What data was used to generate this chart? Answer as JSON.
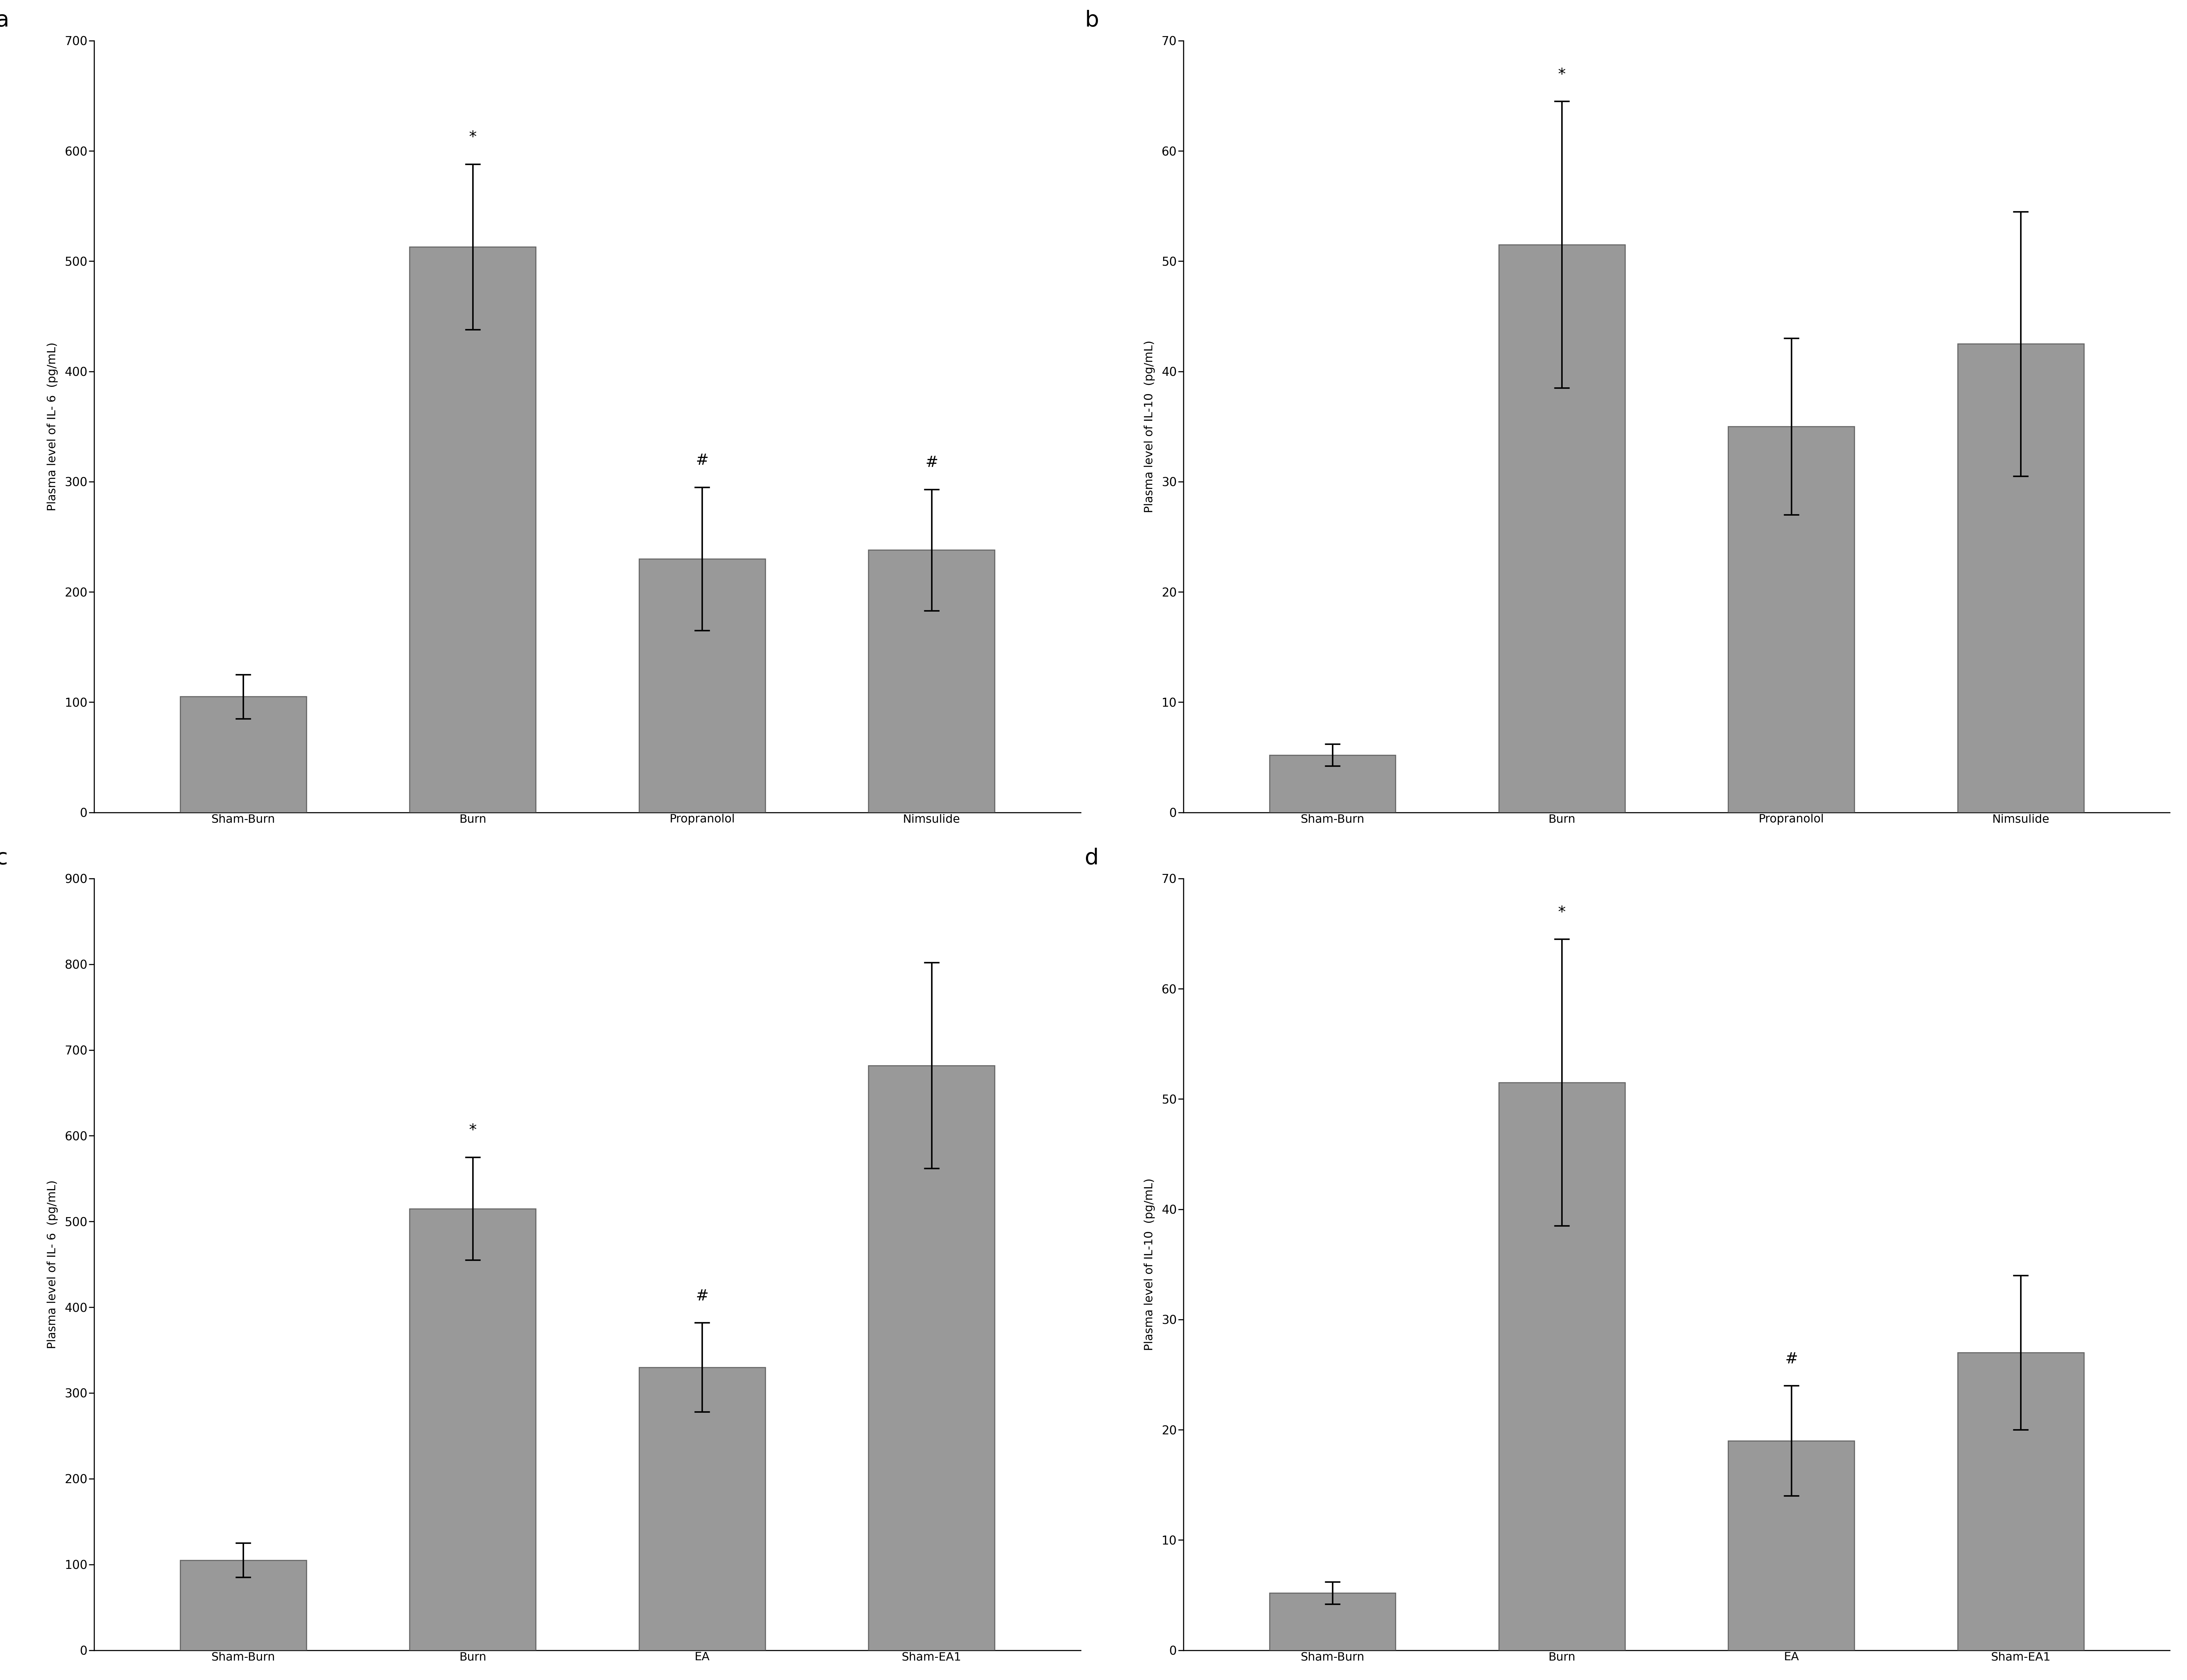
{
  "panels": [
    {
      "label": "a",
      "categories": [
        "Sham-Burn",
        "Burn",
        "Propranolol",
        "Nimsulide"
      ],
      "values": [
        105,
        513,
        230,
        238
      ],
      "errors": [
        20,
        75,
        65,
        55
      ],
      "ylabel": "Plasma level of IL- 6  (pg/mL)",
      "ylim": [
        0,
        700
      ],
      "yticks": [
        0,
        100,
        200,
        300,
        400,
        500,
        600,
        700
      ],
      "annotations": [
        null,
        "*",
        "#",
        "#"
      ]
    },
    {
      "label": "b",
      "categories": [
        "Sham-Burn",
        "Burn",
        "Propranolol",
        "Nimsulide"
      ],
      "values": [
        5.2,
        51.5,
        35,
        42.5
      ],
      "errors": [
        1.0,
        13,
        8,
        12
      ],
      "ylabel": "Plasma level of IL-10  (pg/mL)",
      "ylim": [
        0,
        70
      ],
      "yticks": [
        0,
        10,
        20,
        30,
        40,
        50,
        60,
        70
      ],
      "annotations": [
        null,
        "*",
        null,
        null
      ]
    },
    {
      "label": "c",
      "categories": [
        "Sham-Burn",
        "Burn",
        "EA",
        "Sham-EA1"
      ],
      "values": [
        105,
        515,
        330,
        682
      ],
      "errors": [
        20,
        60,
        52,
        120
      ],
      "ylabel": "Plasma level of IL- 6  (pg/mL)",
      "ylim": [
        0,
        900
      ],
      "yticks": [
        0,
        100,
        200,
        300,
        400,
        500,
        600,
        700,
        800,
        900
      ],
      "annotations": [
        null,
        "*",
        "#",
        null
      ]
    },
    {
      "label": "d",
      "categories": [
        "Sham-Burn",
        "Burn",
        "EA",
        "Sham-EA1"
      ],
      "values": [
        5.2,
        51.5,
        19,
        27
      ],
      "errors": [
        1.0,
        13,
        5,
        7
      ],
      "ylabel": "Plasma level of IL-10  (pg/mL)",
      "ylim": [
        0,
        70
      ],
      "yticks": [
        0,
        10,
        20,
        30,
        40,
        50,
        60,
        70
      ],
      "annotations": [
        null,
        "*",
        "#",
        null
      ]
    }
  ],
  "bar_color": "#999999",
  "bar_edgecolor": "#666666",
  "background_color": "#ffffff",
  "panel_label_fontsize": 52,
  "tick_fontsize": 28,
  "ylabel_fontsize": 27,
  "annot_fontsize": 36,
  "xlabel_fontsize": 27,
  "bar_width": 0.55,
  "capsize": 18,
  "elinewidth": 3.5,
  "ecapthick": 3.5,
  "spine_linewidth": 2.5
}
